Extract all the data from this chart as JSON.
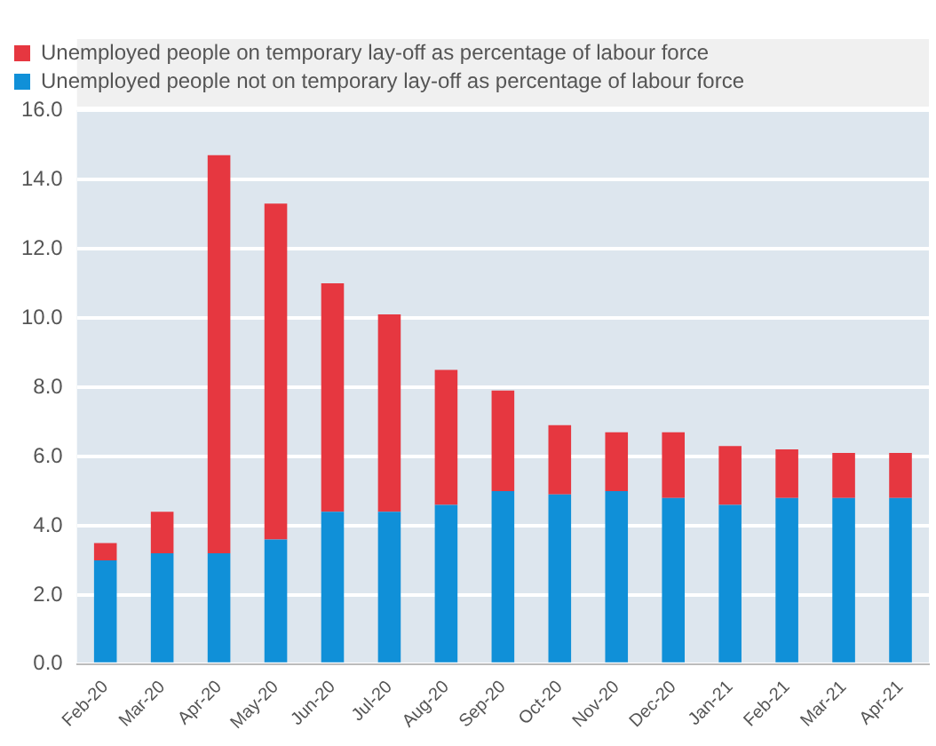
{
  "chart_data": {
    "type": "bar",
    "stacked": true,
    "categories": [
      "Feb-20",
      "Mar-20",
      "Apr-20",
      "May-20",
      "Jun-20",
      "Jul-20",
      "Aug-20",
      "Sep-20",
      "Oct-20",
      "Nov-20",
      "Dec-20",
      "Jan-21",
      "Feb-21",
      "Mar-21",
      "Apr-21"
    ],
    "series": [
      {
        "name": "Unemployed people not on temporary lay-off as percentage of labour force",
        "color": "#1090d8",
        "values": [
          3.0,
          3.2,
          3.2,
          3.6,
          4.4,
          4.4,
          4.6,
          5.0,
          4.9,
          5.0,
          4.8,
          4.6,
          4.8,
          4.8,
          4.8
        ]
      },
      {
        "name": "Unemployed people on temporary lay-off as percentage of labour force",
        "color": "#e63740",
        "values": [
          0.5,
          1.2,
          11.5,
          9.7,
          6.6,
          5.7,
          3.9,
          2.9,
          2.0,
          1.7,
          1.9,
          1.7,
          1.4,
          1.3,
          1.3
        ]
      }
    ],
    "ylim": [
      0,
      16
    ],
    "yticks": [
      {
        "value": 0,
        "label": "0.0"
      },
      {
        "value": 2,
        "label": "2.0"
      },
      {
        "value": 4,
        "label": "4.0"
      },
      {
        "value": 6,
        "label": "6.0"
      },
      {
        "value": 8,
        "label": "8.0"
      },
      {
        "value": 10,
        "label": "10.0"
      },
      {
        "value": 12,
        "label": "12.0"
      },
      {
        "value": 14,
        "label": "14.0"
      },
      {
        "value": 16,
        "label": "16.0"
      }
    ],
    "grid": "y",
    "legend": "top"
  }
}
